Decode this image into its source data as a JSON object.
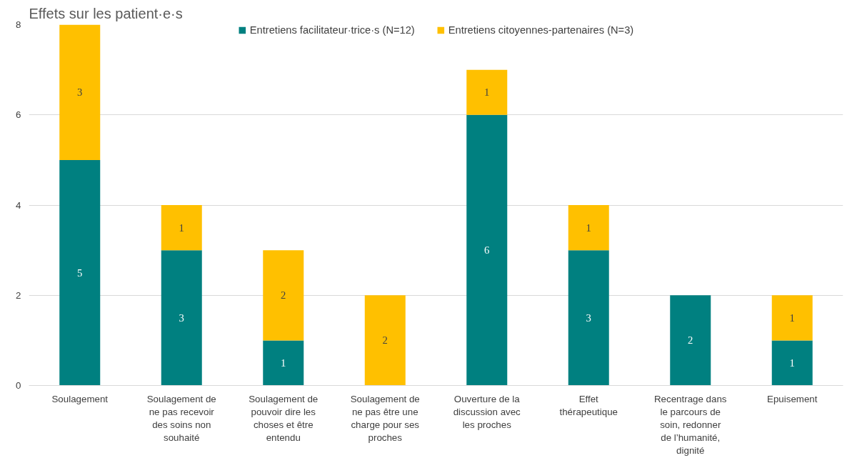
{
  "chart_data": {
    "type": "bar",
    "stacked": true,
    "title": "Effets sur les patient·e·s",
    "categories": [
      "Soulagement",
      "Soulagement de ne pas recevoir des soins non souhaité",
      "Soulagement de pouvoir dire les choses et être entendu",
      "Soulagement de ne pas être une charge pour ses proches",
      "Ouverture de la discussion avec les proches",
      "Effet thérapeutique",
      "Recentrage dans le parcours de soin, redonner de l’humanité, dignité",
      "Epuisement"
    ],
    "series": [
      {
        "name": "Entretiens facilitateur·trice·s (N=12)",
        "color": "#008080",
        "values": [
          5,
          3,
          1,
          0,
          6,
          3,
          2,
          1
        ],
        "value_labels": [
          "5",
          "3",
          "1",
          null,
          "6",
          "3",
          "2",
          "1"
        ]
      },
      {
        "name": "Entretiens citoyennes-partenaires (N=3)",
        "color": "#ffc000",
        "values": [
          3,
          1,
          2,
          2,
          1,
          1,
          0,
          1
        ],
        "value_labels": [
          "3",
          "1",
          "2",
          "2",
          "1",
          "1",
          null,
          "1"
        ]
      }
    ],
    "ylim": [
      0,
      8
    ],
    "yticks": [
      0,
      2,
      4,
      6,
      8
    ],
    "grid": "y",
    "legend": "top"
  }
}
